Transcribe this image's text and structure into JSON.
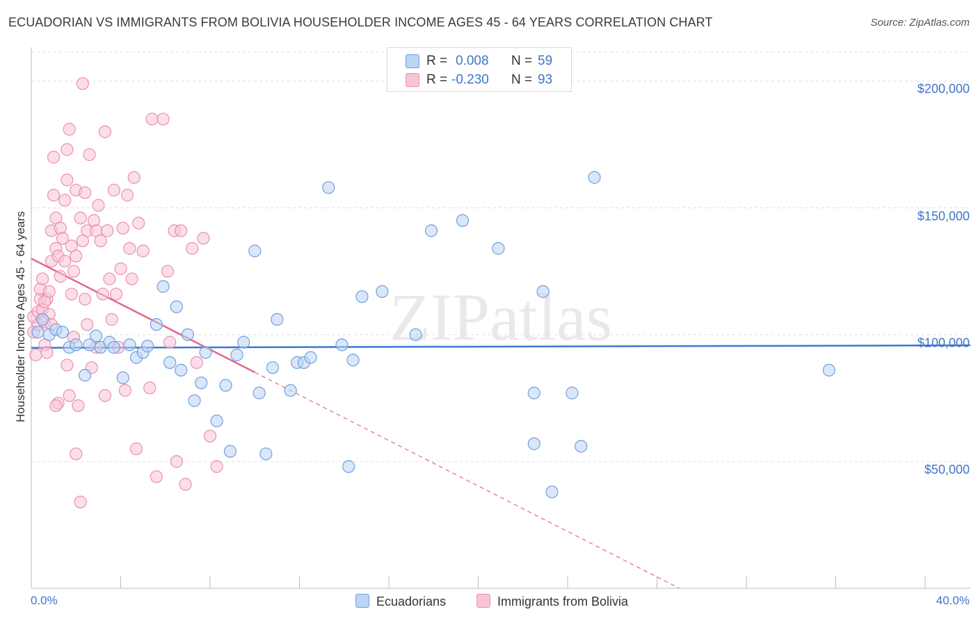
{
  "chart_data": {
    "type": "scatter",
    "title": "ECUADORIAN VS IMMIGRANTS FROM BOLIVIA HOUSEHOLDER INCOME AGES 45 - 64 YEARS CORRELATION CHART",
    "source": "Source: ZipAtlas.com",
    "watermark": "ZIPatlas",
    "xlabel": "",
    "ylabel": "Householder Income Ages 45 - 64 years",
    "xlim": [
      0,
      40
    ],
    "ylim": [
      0,
      210000
    ],
    "x_tick_labels": {
      "min": "0.0%",
      "max": "40.0%"
    },
    "y_ticks": [
      {
        "value": 200000,
        "label": "$200,000"
      },
      {
        "value": 150000,
        "label": "$150,000"
      },
      {
        "value": 100000,
        "label": "$100,000"
      },
      {
        "value": 50000,
        "label": "$50,000"
      }
    ],
    "legend": [
      {
        "series": "Ecuadorians",
        "r_label": "R =",
        "r": "0.008",
        "n_label": "N =",
        "n": "59"
      },
      {
        "series": "Immigrants from Bolivia",
        "r_label": "R =",
        "r": "-0.230",
        "n_label": "N =",
        "n": "93"
      }
    ],
    "colors": {
      "ecuadorians_fill": "#bcd4f4",
      "ecuadorians_stroke": "#6f9fdf",
      "ecuadorians_line": "#3b78d0",
      "bolivia_fill": "#f8c4d6",
      "bolivia_stroke": "#eb8fb0",
      "bolivia_line": "#e2678f",
      "axis_text": "#3f74c9",
      "grid": "#dddddd"
    },
    "series": [
      {
        "name": "Ecuadorians",
        "trend": {
          "x_start": 0,
          "y_start": 94800,
          "x_end": 40,
          "y_end": 95800,
          "dashed_from_x": null
        },
        "points": [
          [
            0.3,
            101000
          ],
          [
            0.5,
            106000
          ],
          [
            0.8,
            100000
          ],
          [
            1.1,
            102000
          ],
          [
            1.4,
            101000
          ],
          [
            1.7,
            95000
          ],
          [
            2.0,
            96000
          ],
          [
            2.4,
            84000
          ],
          [
            2.6,
            96000
          ],
          [
            2.9,
            99500
          ],
          [
            3.1,
            95000
          ],
          [
            3.5,
            97000
          ],
          [
            3.7,
            95000
          ],
          [
            4.1,
            83000
          ],
          [
            4.4,
            96000
          ],
          [
            4.7,
            91000
          ],
          [
            5.0,
            93000
          ],
          [
            5.2,
            95500
          ],
          [
            5.6,
            104000
          ],
          [
            5.9,
            119000
          ],
          [
            6.2,
            89000
          ],
          [
            6.5,
            111000
          ],
          [
            6.7,
            86000
          ],
          [
            7.0,
            100000
          ],
          [
            7.3,
            74000
          ],
          [
            7.6,
            81000
          ],
          [
            7.8,
            93000
          ],
          [
            8.3,
            66000
          ],
          [
            8.7,
            80000
          ],
          [
            8.9,
            54000
          ],
          [
            9.2,
            92000
          ],
          [
            9.5,
            97000
          ],
          [
            10.0,
            133000
          ],
          [
            10.2,
            77000
          ],
          [
            10.5,
            53000
          ],
          [
            10.8,
            87000
          ],
          [
            11.0,
            106000
          ],
          [
            11.6,
            78000
          ],
          [
            11.9,
            89000
          ],
          [
            12.2,
            89000
          ],
          [
            12.5,
            91000
          ],
          [
            13.3,
            158000
          ],
          [
            13.9,
            96000
          ],
          [
            14.2,
            48000
          ],
          [
            14.4,
            90000
          ],
          [
            14.8,
            115000
          ],
          [
            15.7,
            117000
          ],
          [
            17.2,
            100000
          ],
          [
            17.9,
            141000
          ],
          [
            19.3,
            145000
          ],
          [
            20.9,
            134000
          ],
          [
            22.5,
            77000
          ],
          [
            22.5,
            57000
          ],
          [
            22.9,
            117000
          ],
          [
            23.3,
            38000
          ],
          [
            24.2,
            77000
          ],
          [
            24.6,
            56000
          ],
          [
            25.2,
            162000
          ],
          [
            35.7,
            86000
          ]
        ]
      },
      {
        "name": "Immigrants from Bolivia",
        "trend": {
          "x_start": 0,
          "y_start": 130000,
          "x_end": 29,
          "y_end": 0,
          "dashed_from_x": 10
        },
        "points": [
          [
            0.1,
            101000
          ],
          [
            0.1,
            107000
          ],
          [
            0.2,
            92000
          ],
          [
            0.3,
            109000
          ],
          [
            0.3,
            104000
          ],
          [
            0.4,
            114000
          ],
          [
            0.4,
            118000
          ],
          [
            0.5,
            122000
          ],
          [
            0.5,
            110000
          ],
          [
            0.6,
            105000
          ],
          [
            0.6,
            96000
          ],
          [
            0.7,
            114000
          ],
          [
            0.7,
            93000
          ],
          [
            0.8,
            108000
          ],
          [
            0.8,
            117000
          ],
          [
            0.9,
            129000
          ],
          [
            0.9,
            141000
          ],
          [
            1.0,
            170000
          ],
          [
            1.0,
            155000
          ],
          [
            1.1,
            146000
          ],
          [
            1.1,
            134000
          ],
          [
            1.2,
            131000
          ],
          [
            1.3,
            123000
          ],
          [
            1.3,
            142000
          ],
          [
            1.4,
            138000
          ],
          [
            1.5,
            129000
          ],
          [
            1.5,
            153000
          ],
          [
            1.6,
            173000
          ],
          [
            1.6,
            161000
          ],
          [
            1.7,
            181000
          ],
          [
            1.8,
            135000
          ],
          [
            1.8,
            116000
          ],
          [
            1.9,
            125000
          ],
          [
            2.0,
            131000
          ],
          [
            2.0,
            157000
          ],
          [
            2.1,
            72000
          ],
          [
            2.2,
            146000
          ],
          [
            2.3,
            137000
          ],
          [
            2.3,
            199000
          ],
          [
            2.4,
            156000
          ],
          [
            2.5,
            104000
          ],
          [
            2.5,
            141000
          ],
          [
            2.6,
            171000
          ],
          [
            2.7,
            87000
          ],
          [
            2.8,
            145000
          ],
          [
            2.9,
            141000
          ],
          [
            3.0,
            151000
          ],
          [
            3.1,
            137000
          ],
          [
            3.2,
            116000
          ],
          [
            3.3,
            76000
          ],
          [
            3.3,
            180000
          ],
          [
            3.4,
            141000
          ],
          [
            3.5,
            122000
          ],
          [
            3.6,
            106000
          ],
          [
            3.7,
            157000
          ],
          [
            3.8,
            116000
          ],
          [
            3.9,
            95000
          ],
          [
            4.0,
            126000
          ],
          [
            4.1,
            142000
          ],
          [
            4.2,
            78000
          ],
          [
            4.3,
            155000
          ],
          [
            4.4,
            134000
          ],
          [
            4.5,
            122000
          ],
          [
            4.6,
            162000
          ],
          [
            4.7,
            55000
          ],
          [
            4.8,
            144000
          ],
          [
            5.0,
            133000
          ],
          [
            5.3,
            79000
          ],
          [
            5.4,
            185000
          ],
          [
            5.6,
            44000
          ],
          [
            5.9,
            185000
          ],
          [
            6.1,
            125000
          ],
          [
            6.2,
            97000
          ],
          [
            6.4,
            141000
          ],
          [
            6.5,
            50000
          ],
          [
            6.7,
            141000
          ],
          [
            6.9,
            41000
          ],
          [
            7.2,
            134000
          ],
          [
            7.4,
            89000
          ],
          [
            7.7,
            138000
          ],
          [
            8.0,
            60000
          ],
          [
            8.3,
            48000
          ],
          [
            1.2,
            73000
          ],
          [
            1.7,
            76000
          ],
          [
            2.0,
            53000
          ],
          [
            2.2,
            34000
          ],
          [
            0.9,
            104000
          ],
          [
            1.1,
            72000
          ],
          [
            1.9,
            99000
          ],
          [
            2.4,
            114000
          ],
          [
            1.6,
            88000
          ],
          [
            2.9,
            95000
          ],
          [
            0.6,
            113000
          ]
        ]
      }
    ]
  }
}
